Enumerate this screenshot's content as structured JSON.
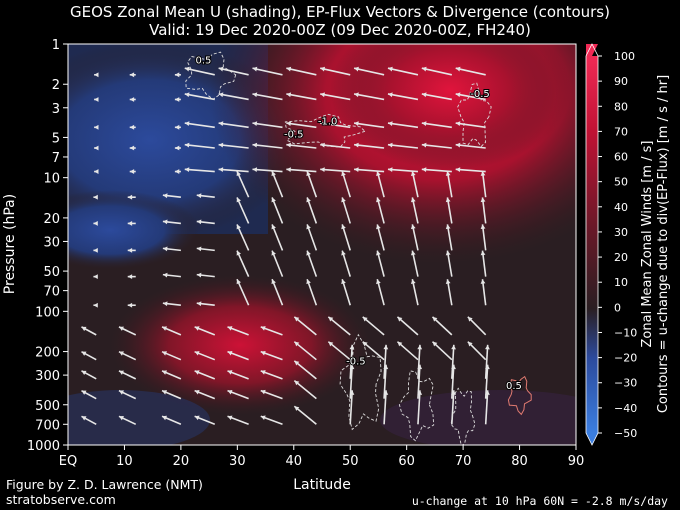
{
  "title_line1": "GEOS Zonal Mean U (shading), EP-Flux Vectors & Divergence (contours)",
  "title_line2": "Valid: 19 Dec 2020-00Z  (09 Dec 2020-00Z, FH240)",
  "footer": {
    "credit": "Figure by Z. D. Lawrence (NMT)",
    "site": "stratobserve.com",
    "note": "u-change at 10 hPa 60N = -2.8 m/s/day"
  },
  "colors": {
    "negative": "#2c4a9c",
    "zero": "#2a1e22",
    "positive": "#e0143c",
    "vectors": "#e6e6e6",
    "contours": "#dddddd"
  },
  "chart_data": {
    "type": "heatmap",
    "xlabel": "Latitude",
    "ylabel": "Pressure (hPa)",
    "x_range": [
      0,
      90
    ],
    "x_ticks": [
      0,
      10,
      20,
      30,
      40,
      50,
      60,
      70,
      80,
      90
    ],
    "x_tick_labels": [
      "EQ",
      "10",
      "20",
      "30",
      "40",
      "50",
      "60",
      "70",
      "80",
      "90"
    ],
    "y_scale": "log",
    "y_range": [
      1000,
      1
    ],
    "y_ticks": [
      1,
      2,
      3,
      5,
      7,
      10,
      20,
      30,
      50,
      70,
      100,
      200,
      300,
      500,
      700,
      1000
    ],
    "colorbar": {
      "label_line1": "Zonal Mean Zonal Winds  [m / s]",
      "label_line2": "Contours = u-change due to div(EP-Flux)  [m / s / hr]",
      "ticks": [
        100,
        90,
        80,
        70,
        60,
        50,
        40,
        30,
        20,
        10,
        0,
        -10,
        -20,
        -30,
        -40,
        -50
      ],
      "range": [
        -50,
        100
      ]
    },
    "wind_features": [
      {
        "desc": "polar night jet maximum",
        "lat": 63,
        "p": 3,
        "u": 90
      },
      {
        "desc": "subtropical jet maximum",
        "lat": 33,
        "p": 200,
        "u": 60
      },
      {
        "desc": "tropical easterlies",
        "lat": 8,
        "p": 7,
        "u": -25
      }
    ],
    "contour_labels": [
      {
        "text": "0.5",
        "lat": 24,
        "p": 1.4
      },
      {
        "text": "-1.0",
        "lat": 46,
        "p": 4.0
      },
      {
        "text": "-0.5",
        "lat": 40,
        "p": 5.0
      },
      {
        "text": "-0.5",
        "lat": 73,
        "p": 2.5
      },
      {
        "text": "-0.5",
        "lat": 51,
        "p": 250
      },
      {
        "text": "0.5",
        "lat": 79,
        "p": 380
      }
    ]
  }
}
